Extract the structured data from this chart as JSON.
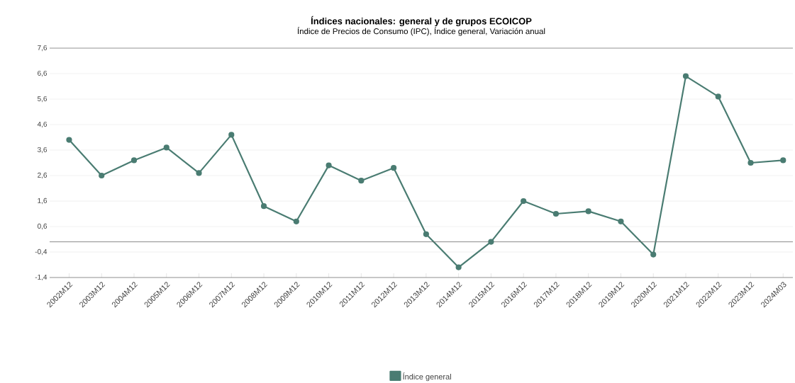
{
  "chart_data": {
    "type": "line",
    "title": "Índices nacionales: general y de grupos ECOICOP",
    "subtitle": "Índice de Precios de Consumo (IPC), Índice general, Variación anual",
    "categories": [
      "2002M12",
      "2003M12",
      "2004M12",
      "2005M12",
      "2006M12",
      "2007M12",
      "2008M12",
      "2009M12",
      "2010M12",
      "2011M12",
      "2012M12",
      "2013M12",
      "2014M12",
      "2015M12",
      "2016M12",
      "2017M12",
      "2018M12",
      "2019M12",
      "2020M12",
      "2021M12",
      "2022M12",
      "2023M12",
      "2024M03"
    ],
    "series": [
      {
        "name": "Índice general",
        "color": "#4a7c72",
        "values": [
          4.0,
          2.6,
          3.2,
          3.7,
          2.7,
          4.2,
          1.4,
          0.8,
          3.0,
          2.4,
          2.9,
          0.3,
          -1.0,
          0.0,
          1.6,
          1.1,
          1.2,
          0.8,
          -0.5,
          6.5,
          5.7,
          3.1,
          3.2
        ]
      }
    ],
    "ylim": [
      -1.4,
      7.6
    ],
    "yticks": [
      {
        "value": -1.4,
        "label": "-1,4"
      },
      {
        "value": -0.4,
        "label": "-0,4"
      },
      {
        "value": 0.6,
        "label": "0,6"
      },
      {
        "value": 1.6,
        "label": "1,6"
      },
      {
        "value": 2.6,
        "label": "2,6"
      },
      {
        "value": 3.6,
        "label": "3,6"
      },
      {
        "value": 4.6,
        "label": "4,6"
      },
      {
        "value": 5.6,
        "label": "5,6"
      },
      {
        "value": 6.6,
        "label": "6,6"
      },
      {
        "value": 7.6,
        "label": "7,6"
      }
    ],
    "ref_lines": [
      {
        "axis": "y",
        "value": 0,
        "color": "#6b6b6b"
      }
    ],
    "grid": "y",
    "legend": "bottom",
    "marker": "circle",
    "line_style": "solid"
  }
}
